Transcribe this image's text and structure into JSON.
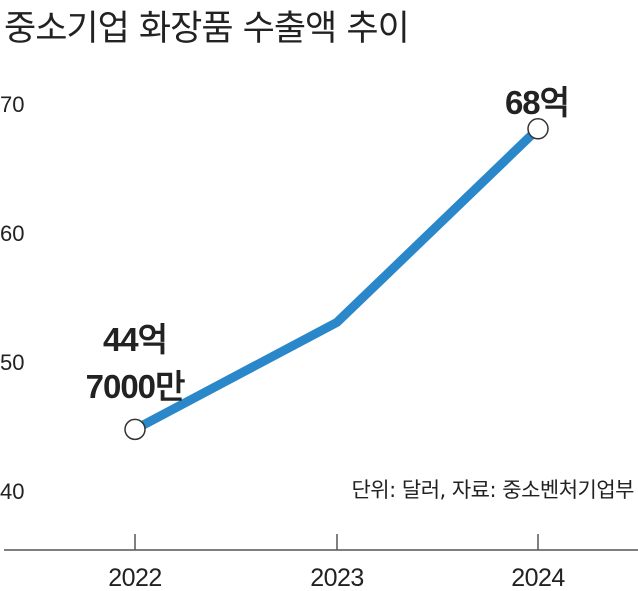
{
  "title": "중소기업 화장품 수출액 추이",
  "source_note": "단위: 달러, 자료: 중소벤처기업부",
  "colors": {
    "line": "#2a87c9",
    "axis": "#555555",
    "text": "#222222",
    "marker_fill": "#ffffff"
  },
  "chart_data": {
    "type": "line",
    "title": "중소기업 화장품 수출액 추이",
    "xlabel": "",
    "ylabel": "",
    "categories": [
      "2022",
      "2023",
      "2024"
    ],
    "ylim": [
      40,
      70
    ],
    "yticks": [
      "40",
      "50",
      "60",
      "70"
    ],
    "series": [
      {
        "values": [
          44.7,
          53,
          68
        ]
      }
    ],
    "markers": [
      0,
      2
    ],
    "annotations": [
      {
        "index": 0,
        "lines": [
          "44억",
          "7000만"
        ]
      },
      {
        "index": 2,
        "lines": [
          "68억"
        ]
      }
    ],
    "grid": false,
    "legend": "none"
  }
}
